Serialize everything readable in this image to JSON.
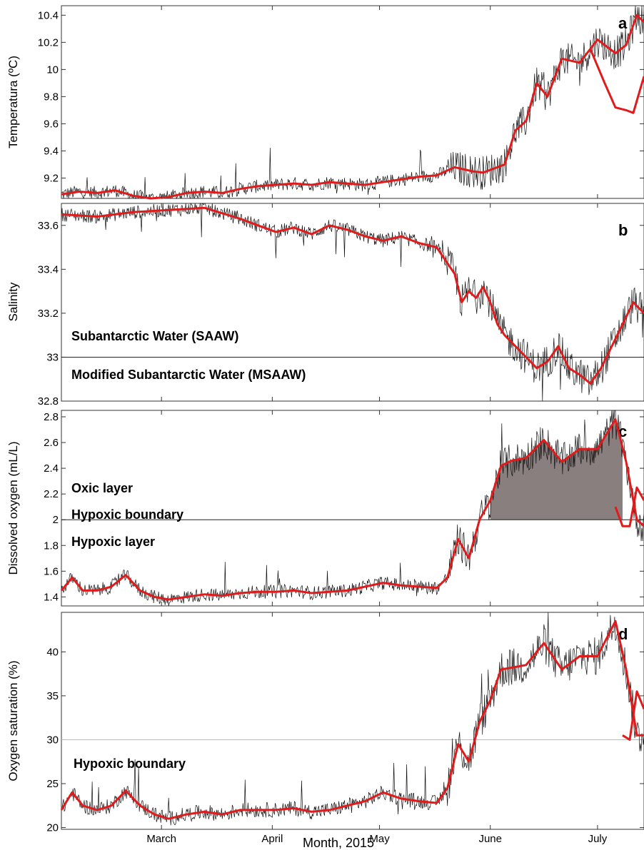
{
  "chart_data": [
    {
      "type": "line",
      "panel_letter": "a",
      "ylabel": "Temperatura (ºC)",
      "ylim": [
        9.05,
        10.47
      ],
      "yticks": [
        9.2,
        9.4,
        9.6,
        9.8,
        10,
        10.2,
        10.4
      ],
      "ytick_labels": [
        "9.2",
        "9.4",
        "9.6",
        "9.8",
        "10",
        "10.2",
        "10.4"
      ],
      "x_range_days": [
        0,
        163
      ],
      "series": [
        {
          "color": "#e01b1b",
          "x": [
            0,
            5,
            10,
            15,
            20,
            25,
            30,
            35,
            40,
            45,
            50,
            55,
            60,
            65,
            70,
            75,
            80,
            85,
            90,
            95,
            100,
            105,
            110,
            115,
            118,
            121,
            124,
            127,
            130,
            133,
            136,
            140,
            145,
            150,
            155,
            158,
            161,
            163
          ],
          "y": [
            9.08,
            9.1,
            9.09,
            9.11,
            9.07,
            9.05,
            9.06,
            9.09,
            9.1,
            9.09,
            9.12,
            9.14,
            9.15,
            9.16,
            9.15,
            9.17,
            9.16,
            9.15,
            9.17,
            9.19,
            9.21,
            9.22,
            9.28,
            9.25,
            9.24,
            9.27,
            9.3,
            9.55,
            9.62,
            9.9,
            9.8,
            10.08,
            10.05,
            10.22,
            10.12,
            10.18,
            10.4,
            10.35
          ]
        },
        {
          "color": "#e01b1b",
          "x": [
            148,
            152,
            155,
            158,
            160,
            163
          ],
          "y": [
            10.15,
            9.9,
            9.72,
            9.7,
            9.68,
            9.95
          ]
        }
      ]
    },
    {
      "type": "line",
      "panel_letter": "b",
      "ylabel": "Salinity",
      "ylim": [
        32.8,
        33.7
      ],
      "yticks": [
        32.8,
        33,
        33.2,
        33.4,
        33.6
      ],
      "ytick_labels": [
        "32.8",
        "33",
        "33.2",
        "33.4",
        "33.6"
      ],
      "reference_line": 33,
      "annotations": [
        "Subantarctic Water (SAAW)",
        "Modified Subantarctic Water (MSAAW)"
      ],
      "series": [
        {
          "color": "#e01b1b",
          "x": [
            0,
            10,
            20,
            30,
            40,
            50,
            55,
            60,
            65,
            70,
            75,
            80,
            85,
            90,
            95,
            100,
            105,
            110,
            112,
            114,
            116,
            118,
            120,
            122,
            124,
            127,
            130,
            133,
            136,
            139,
            142,
            145,
            148,
            151,
            154,
            157,
            160,
            163
          ],
          "y": [
            33.65,
            33.64,
            33.66,
            33.67,
            33.68,
            33.63,
            33.6,
            33.57,
            33.59,
            33.56,
            33.6,
            33.58,
            33.55,
            33.53,
            33.55,
            33.52,
            33.5,
            33.38,
            33.25,
            33.3,
            33.27,
            33.32,
            33.25,
            33.15,
            33.1,
            33.05,
            33.0,
            32.95,
            32.98,
            33.05,
            32.95,
            32.92,
            32.88,
            32.95,
            33.05,
            33.15,
            33.25,
            33.2
          ]
        }
      ]
    },
    {
      "type": "line",
      "panel_letter": "c",
      "ylabel": "Dissolved oxygen (mL/L)",
      "ylim": [
        1.33,
        2.85
      ],
      "yticks": [
        1.4,
        1.6,
        1.8,
        2,
        2.2,
        2.4,
        2.6,
        2.8
      ],
      "ytick_labels": [
        "1.4",
        "1.6",
        "1.8",
        "2",
        "2.2",
        "2.4",
        "2.6",
        "2.8"
      ],
      "reference_line": 2,
      "annotations": [
        "Oxic layer",
        "Hypoxic boundary",
        "Hypoxic layer"
      ],
      "series": [
        {
          "color": "#e01b1b",
          "x": [
            0,
            3,
            6,
            10,
            14,
            18,
            22,
            26,
            30,
            35,
            40,
            45,
            50,
            55,
            60,
            65,
            70,
            75,
            80,
            85,
            90,
            95,
            100,
            105,
            108,
            111,
            114,
            117,
            120,
            123,
            126,
            130,
            135,
            140,
            145,
            150,
            155,
            158,
            161,
            163
          ],
          "y": [
            1.45,
            1.55,
            1.45,
            1.45,
            1.48,
            1.57,
            1.45,
            1.4,
            1.38,
            1.4,
            1.42,
            1.41,
            1.43,
            1.44,
            1.44,
            1.45,
            1.43,
            1.44,
            1.45,
            1.48,
            1.51,
            1.49,
            1.48,
            1.47,
            1.55,
            1.85,
            1.7,
            2.0,
            2.15,
            2.42,
            2.46,
            2.48,
            2.62,
            2.45,
            2.55,
            2.55,
            2.78,
            2.45,
            2.0,
            1.95
          ]
        },
        {
          "color": "#e01b1b",
          "x": [
            155,
            157,
            159,
            161,
            163
          ],
          "y": [
            2.1,
            1.95,
            1.95,
            2.25,
            2.15
          ]
        }
      ]
    },
    {
      "type": "line",
      "panel_letter": "d",
      "ylabel": "Oxygen saturation (%)",
      "ylim": [
        19.8,
        44.5
      ],
      "yticks": [
        20,
        25,
        30,
        35,
        40
      ],
      "ytick_labels": [
        "20",
        "25",
        "30",
        "35",
        "40"
      ],
      "reference_line": 30,
      "annotations": [
        "Hypoxic boundary"
      ],
      "series": [
        {
          "color": "#e01b1b",
          "x": [
            0,
            3,
            6,
            10,
            14,
            18,
            22,
            26,
            30,
            35,
            40,
            45,
            50,
            55,
            60,
            65,
            70,
            75,
            80,
            85,
            90,
            95,
            100,
            105,
            108,
            111,
            114,
            117,
            120,
            123,
            126,
            130,
            135,
            140,
            145,
            150,
            155,
            158,
            161,
            163
          ],
          "y": [
            22.0,
            24.0,
            22.5,
            22.0,
            22.5,
            24.2,
            22.5,
            21.5,
            21.0,
            21.5,
            21.8,
            21.5,
            22.0,
            22.0,
            22.0,
            22.2,
            21.8,
            22.0,
            22.5,
            23.0,
            24.0,
            23.3,
            23.0,
            22.8,
            24.5,
            29.5,
            27.5,
            32.0,
            34.5,
            38.0,
            38.2,
            38.5,
            41.0,
            38.0,
            39.5,
            39.5,
            43.5,
            38.0,
            30.5,
            30.5
          ]
        },
        {
          "color": "#e01b1b",
          "x": [
            157,
            159,
            161,
            163
          ],
          "y": [
            30.5,
            30.0,
            35.5,
            33.5
          ]
        }
      ]
    }
  ],
  "x_axis": {
    "label": "Month, 2015",
    "months": [
      {
        "label": "March",
        "day": 28
      },
      {
        "label": "April",
        "day": 59
      },
      {
        "label": "May",
        "day": 89
      },
      {
        "label": "June",
        "day": 120
      },
      {
        "label": "July",
        "day": 150
      }
    ]
  }
}
